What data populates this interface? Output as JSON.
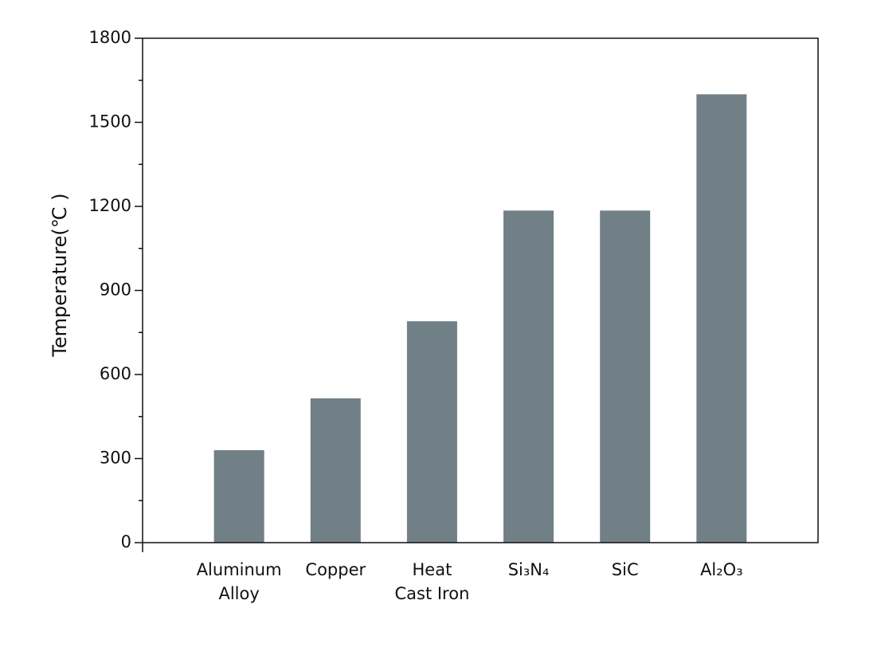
{
  "chart_data": {
    "type": "bar",
    "y_label": "Temperature(℃ )",
    "categories": [
      "Aluminum\nAlloy",
      "Copper",
      "Heat\nCast Iron",
      "Si₃N₄",
      "SiC",
      "Al₂O₃"
    ],
    "values": [
      330,
      515,
      790,
      1185,
      1185,
      1600
    ],
    "color": "#717f87",
    "ylim": [
      0,
      1800
    ],
    "yticks": [
      0,
      300,
      600,
      900,
      1200,
      1500,
      1800
    ],
    "minor_yticks": [
      150,
      450,
      750,
      1050,
      1350,
      1650
    ]
  }
}
